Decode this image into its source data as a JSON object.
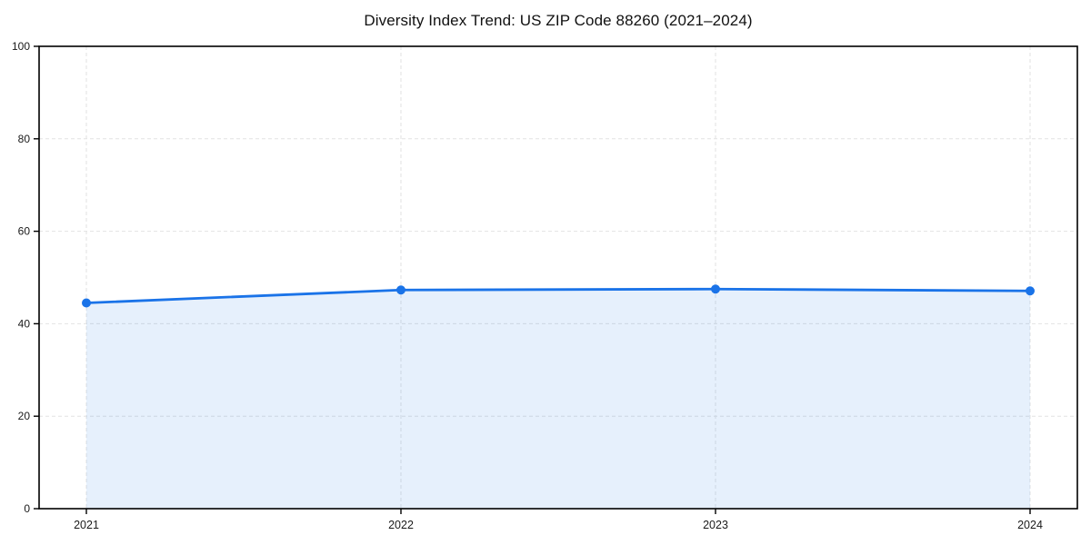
{
  "chart_data": {
    "type": "line",
    "title": "Diversity Index Trend: US ZIP Code 88260 (2021–2024)",
    "x": [
      2021,
      2022,
      2023,
      2024
    ],
    "series": [
      {
        "name": "Diversity Index",
        "values": [
          44.5,
          47.3,
          47.5,
          47.1
        ]
      }
    ],
    "xlabel": "",
    "ylabel": "",
    "ylim": [
      0,
      100
    ],
    "yticks": [
      0,
      20,
      40,
      60,
      80,
      100
    ],
    "xtick_labels": [
      "2021",
      "2022",
      "2023",
      "2024"
    ],
    "grid": "dashed-both",
    "legend_position": "none",
    "colors": {
      "line": "#1a73e8",
      "marker": "#1a73e8",
      "area_fill": "rgba(26,115,232,0.11)",
      "gridline": "#e2e2e2",
      "spine": "#000000",
      "tick_label": "#1a1a1a",
      "title": "#111111",
      "background": "#ffffff"
    }
  }
}
